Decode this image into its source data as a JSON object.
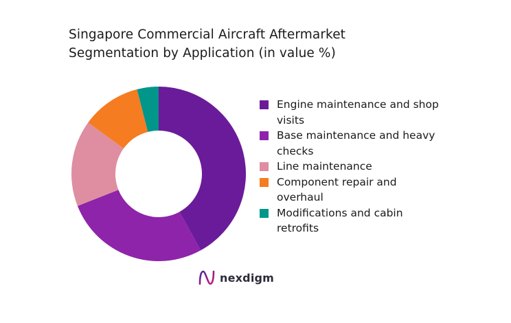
{
  "chart_data": {
    "type": "pie",
    "title_lines": [
      "Singapore Commercial Aircraft Aftermarket",
      "Segmentation by Application (in value %)"
    ],
    "donut": true,
    "legend_position": "right",
    "categories": [
      "Engine maintenance and shop visits",
      "Base maintenance and heavy checks",
      "Line maintenance",
      "Component repair and overhaul",
      "Modifications and cabin retrofits"
    ],
    "values": [
      42,
      27,
      16,
      11,
      4
    ],
    "colors": [
      "#6a1b9a",
      "#8e24aa",
      "#de8ea0",
      "#f57c20",
      "#00968a"
    ]
  },
  "logo": {
    "text": "nexdigm"
  }
}
